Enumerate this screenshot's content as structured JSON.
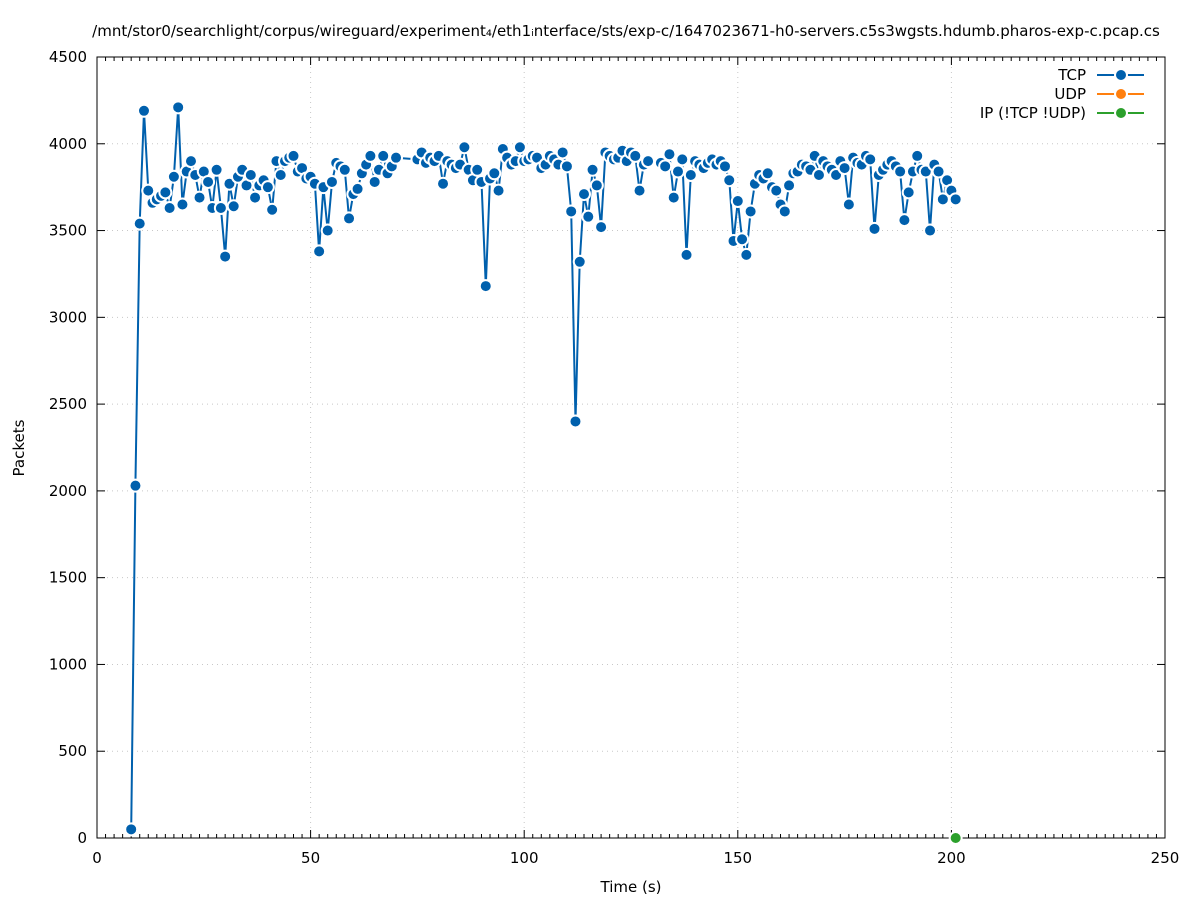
{
  "chart_data": {
    "type": "line",
    "title": "/mnt/stor0/searchlight/corpus/wireguard/experiment₄/eth1ᵢnterface/sts/exp-c/1647023671-h0-servers.c5s3wgsts.hdumb.pharos-exp-c.pcap.cs",
    "xlabel": "Time (s)",
    "ylabel": "Packets",
    "xlim": [
      0,
      250
    ],
    "ylim": [
      0,
      4500
    ],
    "x_ticks": [
      "0",
      "50",
      "100",
      "150",
      "200",
      "250"
    ],
    "y_ticks": [
      "0",
      "500",
      "1000",
      "1500",
      "2000",
      "2500",
      "3000",
      "3500",
      "4000",
      "4500"
    ],
    "grid": true,
    "legend_position": "top-right",
    "series": [
      {
        "name": "TCP",
        "color": "#0060ad",
        "points": [
          [
            8,
            50
          ],
          [
            9,
            2030
          ],
          [
            10,
            3540
          ],
          [
            11,
            4190
          ],
          [
            12,
            3730
          ],
          [
            13,
            3660
          ],
          [
            14,
            3680
          ],
          [
            15,
            3700
          ],
          [
            16,
            3720
          ],
          [
            17,
            3630
          ],
          [
            18,
            3810
          ],
          [
            19,
            4210
          ],
          [
            20,
            3650
          ],
          [
            21,
            3840
          ],
          [
            22,
            3900
          ],
          [
            23,
            3820
          ],
          [
            24,
            3690
          ],
          [
            25,
            3840
          ],
          [
            26,
            3780
          ],
          [
            27,
            3630
          ],
          [
            28,
            3850
          ],
          [
            29,
            3630
          ],
          [
            30,
            3350
          ],
          [
            31,
            3770
          ],
          [
            32,
            3640
          ],
          [
            33,
            3810
          ],
          [
            34,
            3850
          ],
          [
            35,
            3760
          ],
          [
            36,
            3820
          ],
          [
            37,
            3690
          ],
          [
            38,
            3760
          ],
          [
            39,
            3790
          ],
          [
            40,
            3750
          ],
          [
            41,
            3620
          ],
          [
            42,
            3900
          ],
          [
            43,
            3820
          ],
          [
            44,
            3900
          ],
          [
            45,
            3920
          ],
          [
            46,
            3930
          ],
          [
            47,
            3840
          ],
          [
            48,
            3860
          ],
          [
            49,
            3800
          ],
          [
            50,
            3810
          ],
          [
            51,
            3770
          ],
          [
            52,
            3380
          ],
          [
            53,
            3750
          ],
          [
            54,
            3500
          ],
          [
            55,
            3780
          ],
          [
            56,
            3890
          ],
          [
            57,
            3870
          ],
          [
            58,
            3850
          ],
          [
            59,
            3570
          ],
          [
            60,
            3710
          ],
          [
            61,
            3740
          ],
          [
            62,
            3830
          ],
          [
            63,
            3880
          ],
          [
            64,
            3930
          ],
          [
            65,
            3780
          ],
          [
            66,
            3850
          ],
          [
            67,
            3930
          ],
          [
            68,
            3830
          ],
          [
            69,
            3870
          ],
          [
            70,
            3920
          ],
          [
            75,
            3910
          ],
          [
            76,
            3950
          ],
          [
            77,
            3890
          ],
          [
            78,
            3920
          ],
          [
            79,
            3900
          ],
          [
            80,
            3930
          ],
          [
            81,
            3770
          ],
          [
            82,
            3900
          ],
          [
            83,
            3880
          ],
          [
            84,
            3860
          ],
          [
            85,
            3880
          ],
          [
            86,
            3980
          ],
          [
            87,
            3850
          ],
          [
            88,
            3790
          ],
          [
            89,
            3850
          ],
          [
            90,
            3780
          ],
          [
            91,
            3180
          ],
          [
            92,
            3800
          ],
          [
            93,
            3830
          ],
          [
            94,
            3730
          ],
          [
            95,
            3970
          ],
          [
            96,
            3920
          ],
          [
            97,
            3880
          ],
          [
            98,
            3900
          ],
          [
            99,
            3980
          ],
          [
            100,
            3900
          ],
          [
            101,
            3910
          ],
          [
            102,
            3930
          ],
          [
            103,
            3920
          ],
          [
            104,
            3860
          ],
          [
            105,
            3880
          ],
          [
            106,
            3930
          ],
          [
            107,
            3910
          ],
          [
            108,
            3880
          ],
          [
            109,
            3950
          ],
          [
            110,
            3870
          ],
          [
            111,
            3610
          ],
          [
            112,
            2400
          ],
          [
            113,
            3320
          ],
          [
            114,
            3710
          ],
          [
            115,
            3580
          ],
          [
            116,
            3850
          ],
          [
            117,
            3760
          ],
          [
            118,
            3520
          ],
          [
            119,
            3950
          ],
          [
            120,
            3930
          ],
          [
            121,
            3910
          ],
          [
            122,
            3920
          ],
          [
            123,
            3960
          ],
          [
            124,
            3900
          ],
          [
            125,
            3950
          ],
          [
            126,
            3930
          ],
          [
            127,
            3730
          ],
          [
            128,
            3880
          ],
          [
            129,
            3900
          ],
          [
            132,
            3890
          ],
          [
            133,
            3870
          ],
          [
            134,
            3940
          ],
          [
            135,
            3690
          ],
          [
            136,
            3840
          ],
          [
            137,
            3910
          ],
          [
            138,
            3360
          ],
          [
            139,
            3820
          ],
          [
            140,
            3900
          ],
          [
            141,
            3880
          ],
          [
            142,
            3860
          ],
          [
            143,
            3890
          ],
          [
            144,
            3910
          ],
          [
            145,
            3880
          ],
          [
            146,
            3900
          ],
          [
            147,
            3870
          ],
          [
            148,
            3790
          ],
          [
            149,
            3440
          ],
          [
            150,
            3670
          ],
          [
            151,
            3450
          ],
          [
            152,
            3360
          ],
          [
            153,
            3610
          ],
          [
            154,
            3770
          ],
          [
            155,
            3820
          ],
          [
            156,
            3800
          ],
          [
            157,
            3830
          ],
          [
            158,
            3750
          ],
          [
            159,
            3730
          ],
          [
            160,
            3650
          ],
          [
            161,
            3610
          ],
          [
            162,
            3760
          ],
          [
            163,
            3830
          ],
          [
            164,
            3840
          ],
          [
            165,
            3880
          ],
          [
            166,
            3870
          ],
          [
            167,
            3850
          ],
          [
            168,
            3930
          ],
          [
            169,
            3820
          ],
          [
            170,
            3900
          ],
          [
            171,
            3870
          ],
          [
            172,
            3850
          ],
          [
            173,
            3820
          ],
          [
            174,
            3900
          ],
          [
            175,
            3860
          ],
          [
            176,
            3650
          ],
          [
            177,
            3920
          ],
          [
            178,
            3890
          ],
          [
            179,
            3880
          ],
          [
            180,
            3930
          ],
          [
            181,
            3910
          ],
          [
            182,
            3510
          ],
          [
            183,
            3820
          ],
          [
            184,
            3850
          ],
          [
            185,
            3880
          ],
          [
            186,
            3900
          ],
          [
            187,
            3870
          ],
          [
            188,
            3840
          ],
          [
            189,
            3560
          ],
          [
            190,
            3720
          ],
          [
            191,
            3840
          ],
          [
            192,
            3930
          ],
          [
            193,
            3850
          ],
          [
            194,
            3840
          ],
          [
            195,
            3500
          ],
          [
            196,
            3880
          ],
          [
            197,
            3840
          ],
          [
            198,
            3680
          ],
          [
            199,
            3790
          ],
          [
            200,
            3730
          ],
          [
            201,
            3680
          ]
        ]
      },
      {
        "name": "UDP",
        "color": "#ff7f0e",
        "points": []
      },
      {
        "name": "IP (!TCP  !UDP)",
        "color": "#2ca02c",
        "points": [
          [
            201,
            0
          ]
        ]
      }
    ]
  }
}
